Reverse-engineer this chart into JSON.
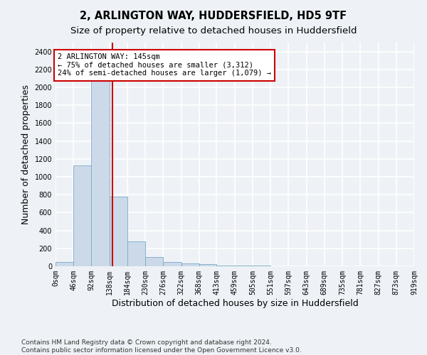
{
  "title_line1": "2, ARLINGTON WAY, HUDDERSFIELD, HD5 9TF",
  "title_line2": "Size of property relative to detached houses in Huddersfield",
  "xlabel": "Distribution of detached houses by size in Huddersfield",
  "ylabel": "Number of detached properties",
  "footnote": "Contains HM Land Registry data © Crown copyright and database right 2024.\nContains public sector information licensed under the Open Government Licence v3.0.",
  "bar_edges": [
    0,
    46,
    92,
    138,
    184,
    230,
    276,
    322,
    368,
    413,
    459,
    505,
    551,
    597,
    643,
    689,
    735,
    781,
    827,
    873,
    919
  ],
  "bar_heights": [
    50,
    1130,
    2200,
    780,
    280,
    100,
    50,
    30,
    20,
    10,
    5,
    5,
    3,
    3,
    3,
    3,
    3,
    3,
    3,
    3
  ],
  "bar_color": "#ccd9e8",
  "bar_edge_color": "#7aaac8",
  "property_size": 145,
  "property_label": "2 ARLINGTON WAY: 145sqm",
  "annotation_line1": "← 75% of detached houses are smaller (3,312)",
  "annotation_line2": "24% of semi-detached houses are larger (1,079) →",
  "vline_color": "#cc0000",
  "annotation_box_edgecolor": "#cc0000",
  "ylim": [
    0,
    2500
  ],
  "yticks": [
    0,
    200,
    400,
    600,
    800,
    1000,
    1200,
    1400,
    1600,
    1800,
    2000,
    2200,
    2400
  ],
  "xtick_labels": [
    "0sqm",
    "46sqm",
    "92sqm",
    "138sqm",
    "184sqm",
    "230sqm",
    "276sqm",
    "322sqm",
    "368sqm",
    "413sqm",
    "459sqm",
    "505sqm",
    "551sqm",
    "597sqm",
    "643sqm",
    "689sqm",
    "735sqm",
    "781sqm",
    "827sqm",
    "873sqm",
    "919sqm"
  ],
  "bg_color": "#eef2f6",
  "plot_bg_color": "#eef2f6",
  "grid_color": "#ffffff",
  "title_fontsize": 10.5,
  "subtitle_fontsize": 9.5,
  "axis_label_fontsize": 9,
  "tick_fontsize": 7,
  "footnote_fontsize": 6.5,
  "annotation_fontsize": 7.5
}
